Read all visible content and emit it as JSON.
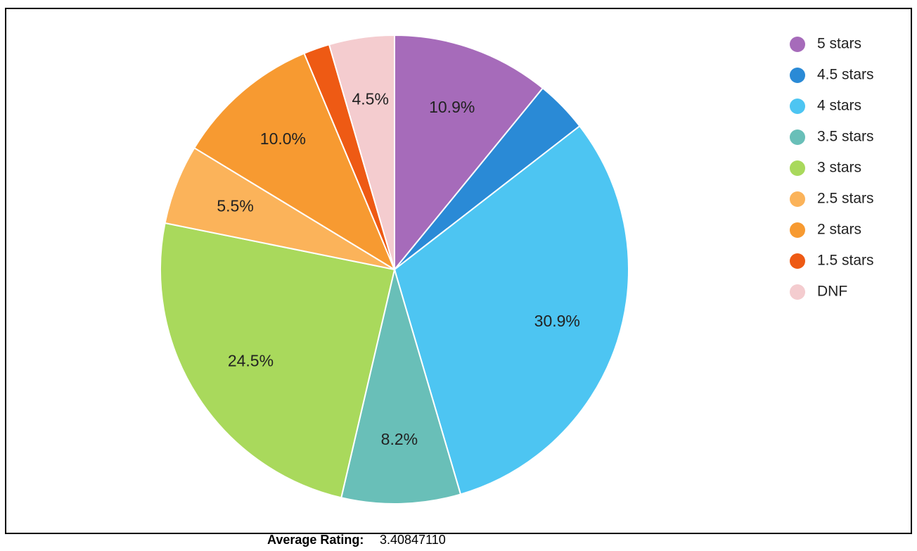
{
  "chart_data": {
    "type": "pie",
    "categories": [
      "5 stars",
      "4.5 stars",
      "4 stars",
      "3.5 stars",
      "3 stars",
      "2.5 stars",
      "2 stars",
      "1.5 stars",
      "DNF"
    ],
    "values": [
      10.9,
      3.6,
      30.9,
      8.2,
      24.5,
      5.5,
      10.0,
      1.8,
      4.5
    ],
    "value_labels": [
      "10.9%",
      null,
      "30.9%",
      "8.2%",
      "24.5%",
      "5.5%",
      "10.0%",
      null,
      "4.5%"
    ],
    "colors": [
      "#a66bba",
      "#2a8ad6",
      "#4dc5f2",
      "#69bfb8",
      "#a9d95c",
      "#fbb35a",
      "#f79a31",
      "#ee5a14",
      "#f4cccf"
    ],
    "legend": "right"
  },
  "footer": {
    "label": "Average Rating:",
    "value": "3.40847110"
  }
}
